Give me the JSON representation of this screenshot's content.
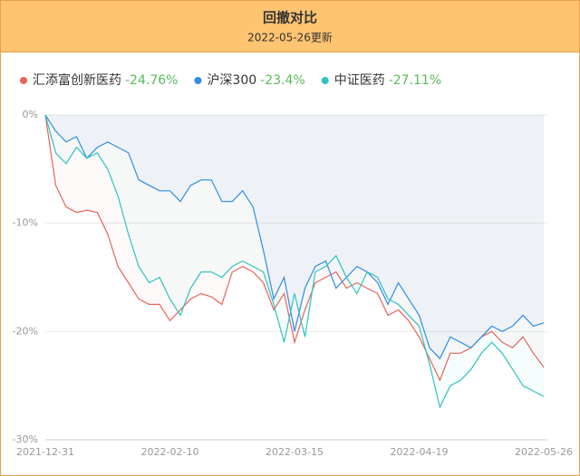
{
  "chart_data": {
    "type": "line",
    "title": "回撤对比",
    "subtitle": "2022-05-26更新",
    "categories": [
      "2021-12-31",
      null,
      null,
      null,
      null,
      null,
      null,
      null,
      null,
      null,
      null,
      null,
      "2022-02-10",
      null,
      null,
      null,
      null,
      null,
      null,
      null,
      null,
      null,
      null,
      null,
      "2022-03-15",
      null,
      null,
      null,
      null,
      null,
      null,
      null,
      null,
      null,
      null,
      null,
      "2022-04-19",
      null,
      null,
      null,
      null,
      null,
      null,
      null,
      null,
      null,
      null,
      null,
      "2022-05-26"
    ],
    "ylim": [
      -30,
      0
    ],
    "yticks": [
      {
        "value": 0,
        "label": "0%"
      },
      {
        "value": -10,
        "label": "-10%"
      },
      {
        "value": -20,
        "label": "-20%"
      },
      {
        "value": -30,
        "label": "-30%"
      }
    ],
    "grid": true,
    "series": [
      {
        "name": "汇添富创新医药",
        "color": "#e8645a",
        "summary": {
          "value": -24.76,
          "label": "-24.76%"
        },
        "values": [
          0,
          -6.5,
          -8.5,
          -9,
          -8.8,
          -9,
          -11,
          -14,
          -15.5,
          -17,
          -17.5,
          -17.5,
          -19,
          -18,
          -17,
          -16.5,
          -16.8,
          -17.5,
          -14.5,
          -14,
          -14.5,
          -15.5,
          -18,
          -16.5,
          -21,
          -18,
          -15.5,
          -15,
          -14.5,
          -16,
          -15.5,
          -16,
          -16.5,
          -18.5,
          -18,
          -19,
          -20.5,
          -22.5,
          -24.5,
          -22,
          -22,
          -21.5,
          -20.5,
          -20,
          -21,
          -21.5,
          -20.5,
          -22,
          -23.3
        ]
      },
      {
        "name": "沪深300",
        "color": "#2f8be6",
        "summary": {
          "value": -23.4,
          "label": "-23.4%"
        },
        "values": [
          0,
          -1.5,
          -2.5,
          -2,
          -4,
          -3,
          -2.5,
          -3,
          -3.5,
          -6,
          -6.5,
          -7,
          -7,
          -8,
          -6.5,
          -6,
          -6,
          -8,
          -8,
          -7,
          -8.5,
          -12.5,
          -17,
          -15,
          -20,
          -16,
          -14,
          -13.5,
          -16,
          -15,
          -14,
          -14.5,
          -15.5,
          -17.5,
          -15.5,
          -17,
          -18.5,
          -21.5,
          -22.5,
          -20.5,
          -21,
          -21.5,
          -20.5,
          -19.5,
          -20,
          -19.5,
          -18.5,
          -19.5,
          -19.2
        ]
      },
      {
        "name": "中证医药",
        "color": "#2ec4c0",
        "summary": {
          "value": -27.11,
          "label": "-27.11%"
        },
        "values": [
          0,
          -3.5,
          -4.5,
          -3,
          -4,
          -3.5,
          -5,
          -7.5,
          -11,
          -14,
          -15.5,
          -15,
          -17,
          -18.5,
          -16,
          -14.5,
          -14.5,
          -15,
          -14,
          -13.5,
          -14,
          -14.5,
          -17.5,
          -21,
          -16.5,
          -20.5,
          -14.5,
          -14,
          -13,
          -15,
          -16.5,
          -14.5,
          -15,
          -17,
          -17.5,
          -18.5,
          -19.5,
          -23,
          -27,
          -25,
          -24.5,
          -23.5,
          -22,
          -21,
          -22,
          -23.5,
          -25,
          -25.5,
          -26
        ]
      }
    ]
  }
}
